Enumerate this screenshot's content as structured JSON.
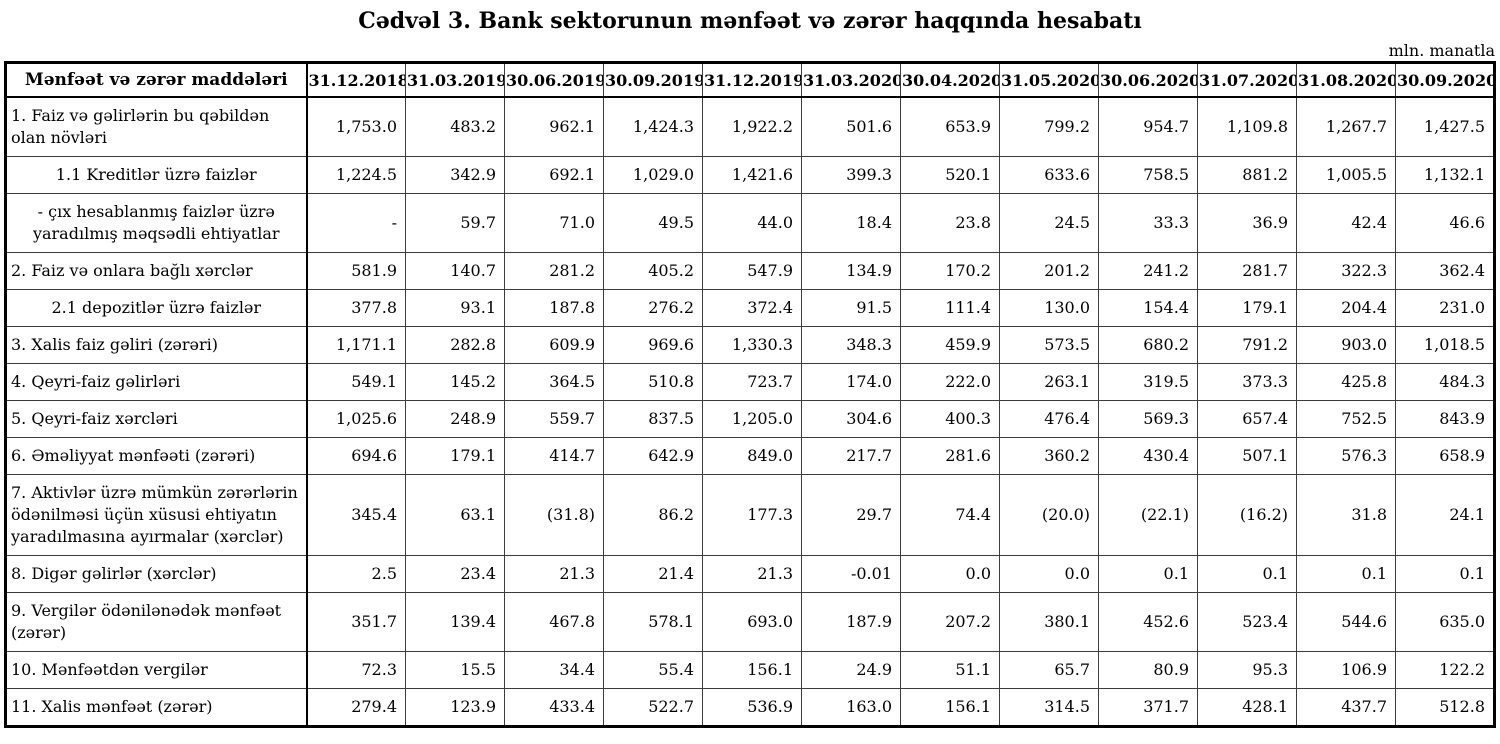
{
  "page": {
    "title": "Cədvəl 3. Bank sektorunun mənfəət və zərər haqqında hesabatı",
    "unit_note": "mln. manatla"
  },
  "table": {
    "stub_header": "Mənfəət və zərər maddələri",
    "period_columns": [
      "31.12.2018",
      "31.03.2019",
      "30.06.2019",
      "30.09.2019",
      "31.12.2019",
      "31.03.2020",
      "30.04.2020",
      "31.05.2020",
      "30.06.2020",
      "31.07.2020",
      "31.08.2020",
      "30.09.2020"
    ],
    "rows": [
      {
        "label": "1. Faiz və gəlirlərin bu qəbildən olan növləri",
        "type": "item",
        "values": [
          "1,753.0",
          "483.2",
          "962.1",
          "1,424.3",
          "1,922.2",
          "501.6",
          "653.9",
          "799.2",
          "954.7",
          "1,109.8",
          "1,267.7",
          "1,427.5"
        ]
      },
      {
        "label": "1.1 Kreditlər üzrə faizlər",
        "type": "subitem",
        "values": [
          "1,224.5",
          "342.9",
          "692.1",
          "1,029.0",
          "1,421.6",
          "399.3",
          "520.1",
          "633.6",
          "758.5",
          "881.2",
          "1,005.5",
          "1,132.1"
        ]
      },
      {
        "label": "-  çıx hesablanmış faizlər üzrə yaradılmış məqsədli ehtiyatlar",
        "type": "subitem",
        "values": [
          "-",
          "59.7",
          "71.0",
          "49.5",
          "44.0",
          "18.4",
          "23.8",
          "24.5",
          "33.3",
          "36.9",
          "42.4",
          "46.6"
        ]
      },
      {
        "label": "2. Faiz və onlara bağlı xərclər",
        "type": "item",
        "values": [
          "581.9",
          "140.7",
          "281.2",
          "405.2",
          "547.9",
          "134.9",
          "170.2",
          "201.2",
          "241.2",
          "281.7",
          "322.3",
          "362.4"
        ]
      },
      {
        "label": "2.1 depozitlər üzrə faizlər",
        "type": "subitem",
        "values": [
          "377.8",
          "93.1",
          "187.8",
          "276.2",
          "372.4",
          "91.5",
          "111.4",
          "130.0",
          "154.4",
          "179.1",
          "204.4",
          "231.0"
        ]
      },
      {
        "label": "3. Xalis faiz gəliri (zərəri)",
        "type": "item",
        "values": [
          "1,171.1",
          "282.8",
          "609.9",
          "969.6",
          "1,330.3",
          "348.3",
          "459.9",
          "573.5",
          "680.2",
          "791.2",
          "903.0",
          "1,018.5"
        ]
      },
      {
        "label": "4. Qeyri-faiz gəlirləri",
        "type": "item",
        "values": [
          "549.1",
          "145.2",
          "364.5",
          "510.8",
          "723.7",
          "174.0",
          "222.0",
          "263.1",
          "319.5",
          "373.3",
          "425.8",
          "484.3"
        ]
      },
      {
        "label": "5. Qeyri-faiz xərcləri",
        "type": "item",
        "values": [
          "1,025.6",
          "248.9",
          "559.7",
          "837.5",
          "1,205.0",
          "304.6",
          "400.3",
          "476.4",
          "569.3",
          "657.4",
          "752.5",
          "843.9"
        ]
      },
      {
        "label": "6. Əməliyyat mənfəəti (zərəri)",
        "type": "item",
        "values": [
          "694.6",
          "179.1",
          "414.7",
          "642.9",
          "849.0",
          "217.7",
          "281.6",
          "360.2",
          "430.4",
          "507.1",
          "576.3",
          "658.9"
        ]
      },
      {
        "label": "7. Aktivlər üzrə mümkün zərərlərin ödənilməsi üçün xüsusi ehtiyatın yaradılmasına ayırmalar (xərclər)",
        "type": "item",
        "values": [
          "345.4",
          "63.1",
          "(31.8)",
          "86.2",
          "177.3",
          "29.7",
          "74.4",
          "(20.0)",
          "(22.1)",
          "(16.2)",
          "31.8",
          "24.1"
        ]
      },
      {
        "label": "8. Digər gəlirlər (xərclər)",
        "type": "item",
        "values": [
          "2.5",
          "23.4",
          "21.3",
          "21.4",
          "21.3",
          "-0.01",
          "0.0",
          "0.0",
          "0.1",
          "0.1",
          "0.1",
          "0.1"
        ]
      },
      {
        "label": "9. Vergilər ödənilənədək mənfəət (zərər)",
        "type": "item",
        "values": [
          "351.7",
          "139.4",
          "467.8",
          "578.1",
          "693.0",
          "187.9",
          "207.2",
          "380.1",
          "452.6",
          "523.4",
          "544.6",
          "635.0"
        ]
      },
      {
        "label": "10. Mənfəətdən vergilər",
        "type": "item",
        "values": [
          "72.3",
          "15.5",
          "34.4",
          "55.4",
          "156.1",
          "24.9",
          "51.1",
          "65.7",
          "80.9",
          "95.3",
          "106.9",
          "122.2"
        ]
      },
      {
        "label": "11. Xalis mənfəət (zərər)",
        "type": "item",
        "values": [
          "279.4",
          "123.9",
          "433.4",
          "522.7",
          "536.9",
          "163.0",
          "156.1",
          "314.5",
          "371.7",
          "428.1",
          "437.7",
          "512.8"
        ]
      }
    ]
  }
}
